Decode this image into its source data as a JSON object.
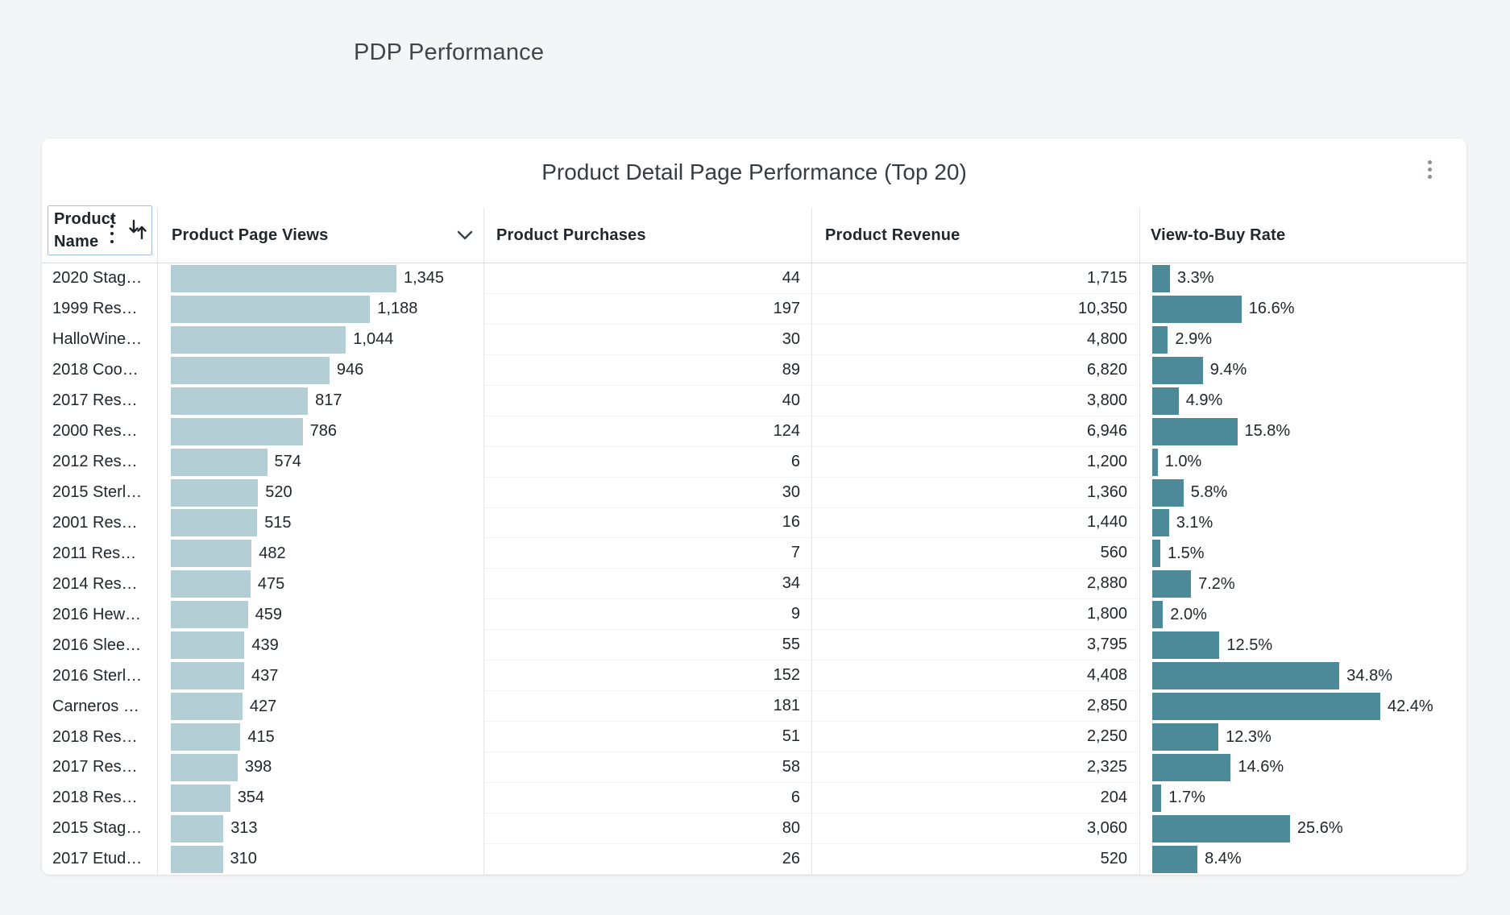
{
  "page": {
    "title": "PDP Performance"
  },
  "card": {
    "title": "Product Detail Page Performance (Top 20)"
  },
  "colors": {
    "page_background": "#f4f5f6",
    "views_bar": "#b4ced6",
    "rate_bar": "#4d8a99",
    "name_box_border": "#a2bedd",
    "header_text": "#21272d",
    "body_text": "#22272d"
  },
  "table": {
    "name_header": {
      "line1": "Product",
      "line2": "Name"
    },
    "columns": [
      {
        "label": "Product Name"
      },
      {
        "label": "Product Page Views"
      },
      {
        "label": "Product Purchases"
      },
      {
        "label": "Product Revenue"
      },
      {
        "label": "View-to-Buy Rate"
      }
    ],
    "rows": [
      {
        "name": "2020 Stag…",
        "views": 1345,
        "views_label": "1,345",
        "purchases": "44",
        "revenue": "1,715",
        "rate": 3.3,
        "rate_label": "3.3%"
      },
      {
        "name": "1999 Res…",
        "views": 1188,
        "views_label": "1,188",
        "purchases": "197",
        "revenue": "10,350",
        "rate": 16.6,
        "rate_label": "16.6%"
      },
      {
        "name": "HalloWine…",
        "views": 1044,
        "views_label": "1,044",
        "purchases": "30",
        "revenue": "4,800",
        "rate": 2.9,
        "rate_label": "2.9%"
      },
      {
        "name": "2018 Coo…",
        "views": 946,
        "views_label": "946",
        "purchases": "89",
        "revenue": "6,820",
        "rate": 9.4,
        "rate_label": "9.4%"
      },
      {
        "name": "2017 Res…",
        "views": 817,
        "views_label": "817",
        "purchases": "40",
        "revenue": "3,800",
        "rate": 4.9,
        "rate_label": "4.9%"
      },
      {
        "name": "2000 Res…",
        "views": 786,
        "views_label": "786",
        "purchases": "124",
        "revenue": "6,946",
        "rate": 15.8,
        "rate_label": "15.8%"
      },
      {
        "name": "2012 Res…",
        "views": 574,
        "views_label": "574",
        "purchases": "6",
        "revenue": "1,200",
        "rate": 1.0,
        "rate_label": "1.0%"
      },
      {
        "name": "2015 Sterl…",
        "views": 520,
        "views_label": "520",
        "purchases": "30",
        "revenue": "1,360",
        "rate": 5.8,
        "rate_label": "5.8%"
      },
      {
        "name": "2001 Res…",
        "views": 515,
        "views_label": "515",
        "purchases": "16",
        "revenue": "1,440",
        "rate": 3.1,
        "rate_label": "3.1%"
      },
      {
        "name": "2011 Res…",
        "views": 482,
        "views_label": "482",
        "purchases": "7",
        "revenue": "560",
        "rate": 1.5,
        "rate_label": "1.5%"
      },
      {
        "name": "2014 Res…",
        "views": 475,
        "views_label": "475",
        "purchases": "34",
        "revenue": "2,880",
        "rate": 7.2,
        "rate_label": "7.2%"
      },
      {
        "name": "2016 Hew…",
        "views": 459,
        "views_label": "459",
        "purchases": "9",
        "revenue": "1,800",
        "rate": 2.0,
        "rate_label": "2.0%"
      },
      {
        "name": "2016 Slee…",
        "views": 439,
        "views_label": "439",
        "purchases": "55",
        "revenue": "3,795",
        "rate": 12.5,
        "rate_label": "12.5%"
      },
      {
        "name": "2016 Sterl…",
        "views": 437,
        "views_label": "437",
        "purchases": "152",
        "revenue": "4,408",
        "rate": 34.8,
        "rate_label": "34.8%"
      },
      {
        "name": "Carneros …",
        "views": 427,
        "views_label": "427",
        "purchases": "181",
        "revenue": "2,850",
        "rate": 42.4,
        "rate_label": "42.4%"
      },
      {
        "name": "2018 Res…",
        "views": 415,
        "views_label": "415",
        "purchases": "51",
        "revenue": "2,250",
        "rate": 12.3,
        "rate_label": "12.3%"
      },
      {
        "name": "2017 Res…",
        "views": 398,
        "views_label": "398",
        "purchases": "58",
        "revenue": "2,325",
        "rate": 14.6,
        "rate_label": "14.6%"
      },
      {
        "name": "2018 Res…",
        "views": 354,
        "views_label": "354",
        "purchases": "6",
        "revenue": "204",
        "rate": 1.7,
        "rate_label": "1.7%"
      },
      {
        "name": "2015 Stag…",
        "views": 313,
        "views_label": "313",
        "purchases": "80",
        "revenue": "3,060",
        "rate": 25.6,
        "rate_label": "25.6%"
      },
      {
        "name": "2017 Etud…",
        "views": 310,
        "views_label": "310",
        "purchases": "26",
        "revenue": "520",
        "rate": 8.4,
        "rate_label": "8.4%"
      }
    ]
  },
  "chart_data": {
    "type": "table",
    "title": "Product Detail Page Performance (Top 20)",
    "columns": [
      "Product Name",
      "Product Page Views",
      "Product Purchases",
      "Product Revenue",
      "View-to-Buy Rate"
    ],
    "rows": [
      [
        "2020 Stag…",
        1345,
        44,
        1715,
        3.3
      ],
      [
        "1999 Res…",
        1188,
        197,
        10350,
        16.6
      ],
      [
        "HalloWine…",
        1044,
        30,
        4800,
        2.9
      ],
      [
        "2018 Coo…",
        946,
        89,
        6820,
        9.4
      ],
      [
        "2017 Res…",
        817,
        40,
        3800,
        4.9
      ],
      [
        "2000 Res…",
        786,
        124,
        6946,
        15.8
      ],
      [
        "2012 Res…",
        574,
        6,
        1200,
        1.0
      ],
      [
        "2015 Sterl…",
        520,
        30,
        1360,
        5.8
      ],
      [
        "2001 Res…",
        515,
        16,
        1440,
        3.1
      ],
      [
        "2011 Res…",
        482,
        7,
        560,
        1.5
      ],
      [
        "2014 Res…",
        475,
        34,
        2880,
        7.2
      ],
      [
        "2016 Hew…",
        459,
        9,
        1800,
        2.0
      ],
      [
        "2016 Slee…",
        439,
        55,
        3795,
        12.5
      ],
      [
        "2016 Sterl…",
        437,
        152,
        4408,
        34.8
      ],
      [
        "Carneros …",
        427,
        181,
        2850,
        42.4
      ],
      [
        "2018 Res…",
        415,
        51,
        2250,
        12.3
      ],
      [
        "2017 Res…",
        398,
        58,
        2325,
        14.6
      ],
      [
        "2018 Res…",
        354,
        6,
        204,
        1.7
      ],
      [
        "2015 Stag…",
        313,
        80,
        3060,
        25.6
      ],
      [
        "2017 Etud…",
        310,
        26,
        520,
        8.4
      ]
    ],
    "bar_columns": [
      "Product Page Views",
      "View-to-Buy Rate"
    ],
    "sorted_by": "Product Page Views desc"
  }
}
